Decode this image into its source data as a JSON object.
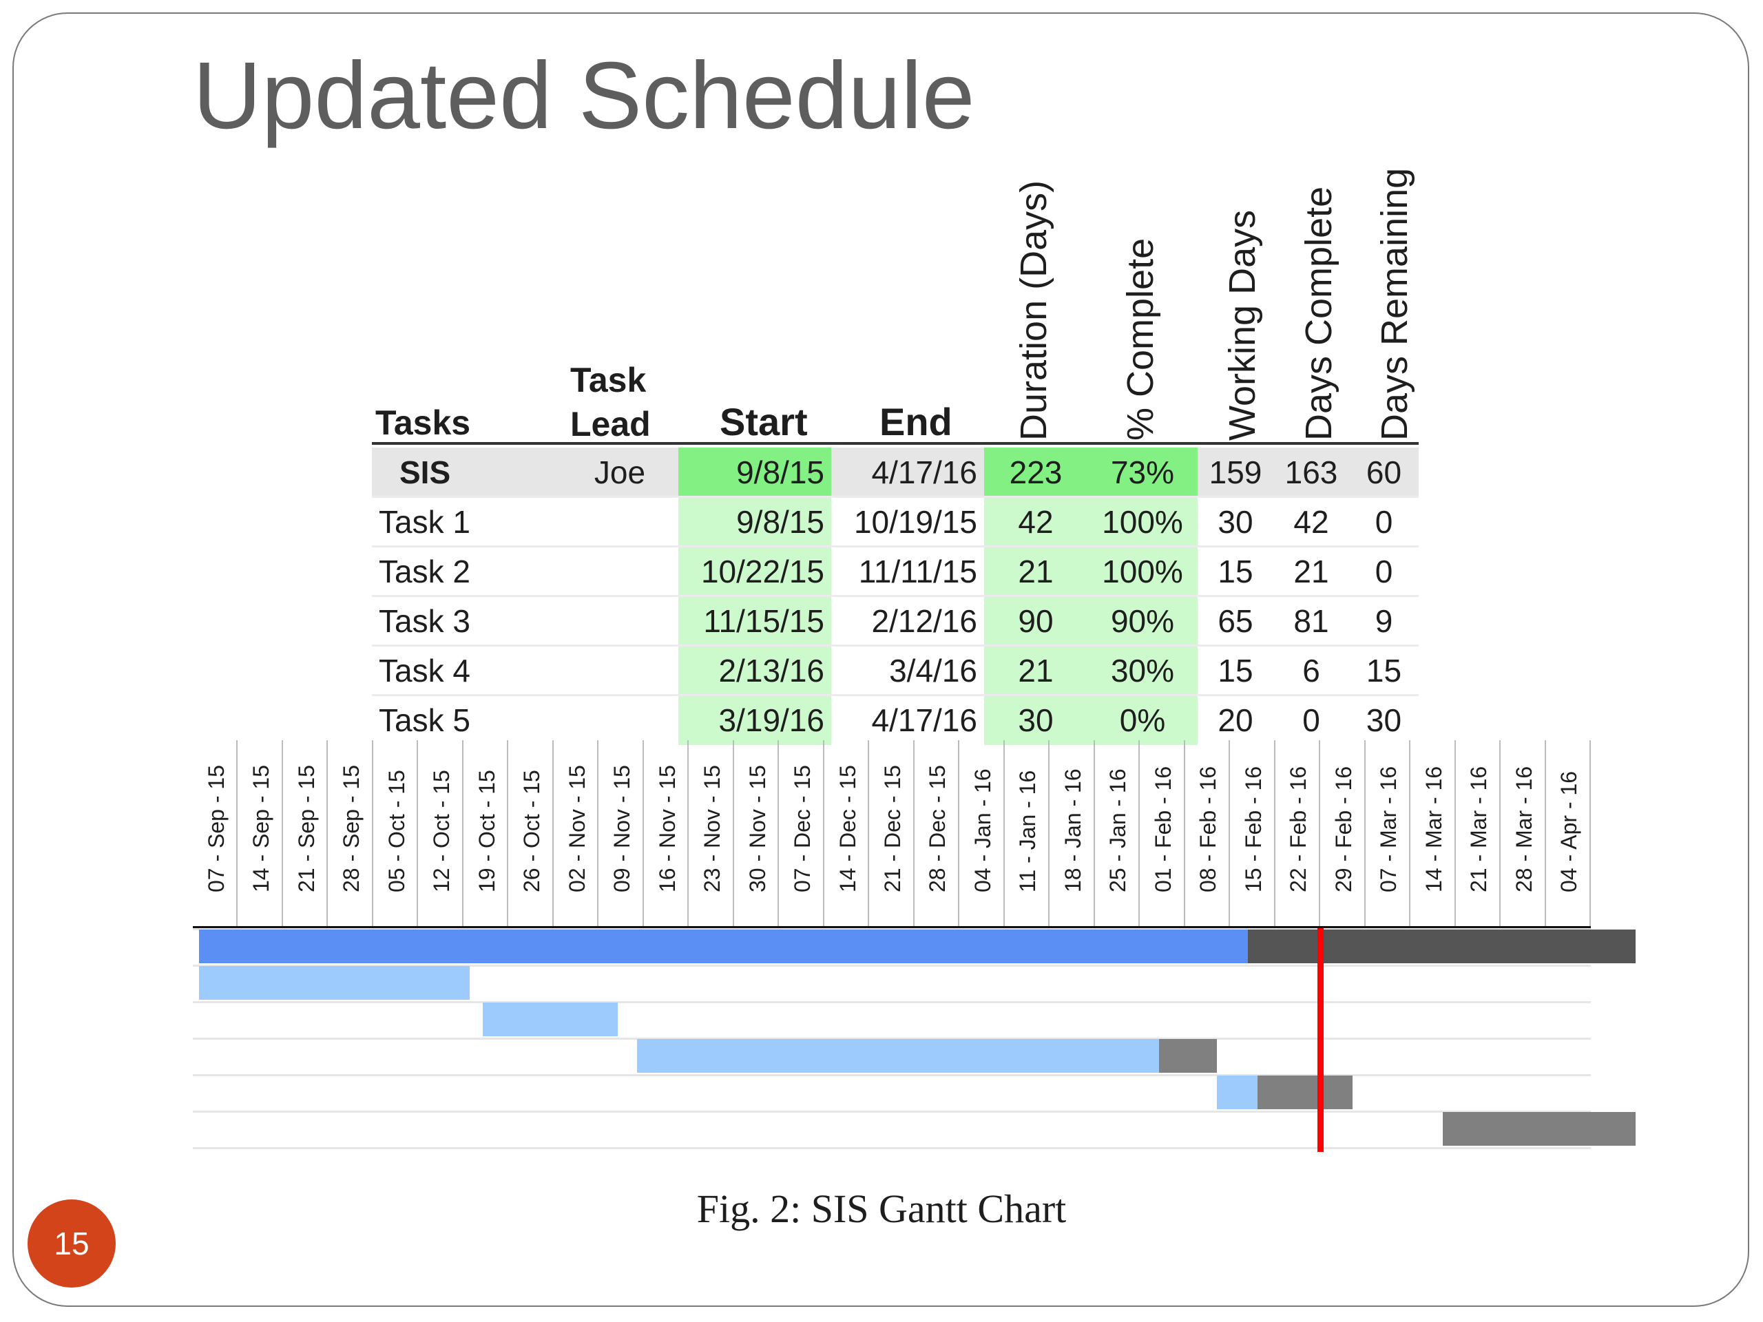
{
  "slide": {
    "title": "Updated Schedule",
    "caption": "Fig. 2: SIS Gantt Chart",
    "page_number": "15",
    "accent_color": "#d3441b"
  },
  "table": {
    "headers": {
      "tasks": "Tasks",
      "task_lead_line1": "Task",
      "task_lead_line2": "Lead",
      "start": "Start",
      "end": "End",
      "duration": "Duration (Days)",
      "pct_complete": "% Complete",
      "working_days": "Working Days",
      "days_complete": "Days Complete",
      "days_remaining": "Days Remaining"
    },
    "rows": [
      {
        "task": "SIS",
        "lead": "Joe",
        "start": "9/8/15",
        "end": "4/17/16",
        "duration": "223",
        "pct": "73%",
        "working": "159",
        "complete": "163",
        "remaining": "60"
      },
      {
        "task": "Task 1",
        "lead": "",
        "start": "9/8/15",
        "end": "10/19/15",
        "duration": "42",
        "pct": "100%",
        "working": "30",
        "complete": "42",
        "remaining": "0"
      },
      {
        "task": "Task 2",
        "lead": "",
        "start": "10/22/15",
        "end": "11/11/15",
        "duration": "21",
        "pct": "100%",
        "working": "15",
        "complete": "21",
        "remaining": "0"
      },
      {
        "task": "Task 3",
        "lead": "",
        "start": "11/15/15",
        "end": "2/12/16",
        "duration": "90",
        "pct": "90%",
        "working": "65",
        "complete": "81",
        "remaining": "9"
      },
      {
        "task": "Task 4",
        "lead": "",
        "start": "2/13/16",
        "end": "3/4/16",
        "duration": "21",
        "pct": "30%",
        "working": "15",
        "complete": "6",
        "remaining": "15"
      },
      {
        "task": "Task 5",
        "lead": "",
        "start": "3/19/16",
        "end": "4/17/16",
        "duration": "30",
        "pct": "0%",
        "working": "20",
        "complete": "0",
        "remaining": "30"
      }
    ]
  },
  "timeline": {
    "weeks": [
      "07 - Sep - 15",
      "14 - Sep - 15",
      "21 - Sep - 15",
      "28 - Sep - 15",
      "05 - Oct - 15",
      "12 - Oct - 15",
      "19 - Oct - 15",
      "26 - Oct - 15",
      "02 - Nov - 15",
      "09 - Nov - 15",
      "16 - Nov - 15",
      "23 - Nov - 15",
      "30 - Nov - 15",
      "07 - Dec - 15",
      "14 - Dec - 15",
      "21 - Dec - 15",
      "28 - Dec - 15",
      "04 - Jan - 16",
      "11 - Jan - 16",
      "18 - Jan - 16",
      "25 - Jan - 16",
      "01 - Feb - 16",
      "08 - Feb - 16",
      "15 - Feb - 16",
      "22 - Feb - 16",
      "29 - Feb - 16",
      "07 - Mar - 16",
      "14 - Mar - 16",
      "21 - Mar - 16",
      "28 - Mar - 16",
      "04 - Apr - 16"
    ]
  },
  "chart_data": {
    "type": "gantt",
    "tasks": [
      {
        "name": "SIS",
        "start": "2015-09-08",
        "end": "2016-04-17",
        "percent_complete": 73
      },
      {
        "name": "Task 1",
        "start": "2015-09-08",
        "end": "2015-10-19",
        "percent_complete": 100
      },
      {
        "name": "Task 2",
        "start": "2015-10-22",
        "end": "2015-11-11",
        "percent_complete": 100
      },
      {
        "name": "Task 3",
        "start": "2015-11-15",
        "end": "2016-02-12",
        "percent_complete": 90
      },
      {
        "name": "Task 4",
        "start": "2016-02-13",
        "end": "2016-03-04",
        "percent_complete": 30
      },
      {
        "name": "Task 5",
        "start": "2016-03-19",
        "end": "2016-04-17",
        "percent_complete": 0
      }
    ],
    "x_range": [
      "2015-09-07",
      "2016-04-10"
    ],
    "today_marker": "2016-02-29",
    "colors": {
      "summary_done": "#5b8ff4",
      "task_done": "#9dcbfd",
      "summary_remaining": "#555555",
      "task_remaining": "#808080",
      "today": "#ff0000",
      "date_highlight": "#ccfacc",
      "date_highlight_summary": "#82f082",
      "summary_row_bg": "#e6e6e6"
    }
  }
}
